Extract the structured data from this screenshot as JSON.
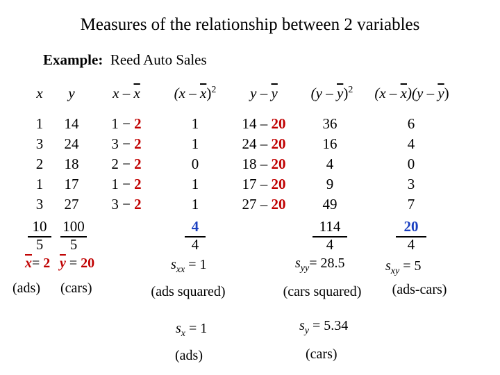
{
  "title": "Measures of the relationship between 2 variables",
  "example_label": "Example:",
  "example_name": "Reed Auto Sales",
  "headers": {
    "x": "x",
    "y": "y",
    "dx_a": "x",
    "dx_minus": " – ",
    "dx_b": "x",
    "dx2_open": "(x – ",
    "dx2_bar": "x",
    "dx2_close": ")",
    "dx2_exp": "2",
    "dy_a": "y",
    "dy_minus": " – ",
    "dy_b": "y",
    "dy2_open": "(y – ",
    "dy2_bar": "y",
    "dy2_close": ")",
    "dy2_exp": "2",
    "dxy_open1": "(x – ",
    "dxy_bar1": "x",
    "dxy_mid": ")(y – ",
    "dxy_bar2": "y",
    "dxy_close": ")"
  },
  "x": [
    "1",
    "3",
    "2",
    "1",
    "3"
  ],
  "y": [
    "14",
    "24",
    "18",
    "17",
    "27"
  ],
  "x_minus": [
    "1 − ",
    "3 − ",
    "2 − ",
    "1 − ",
    "3 − "
  ],
  "x_mean_sub": [
    "2",
    "2",
    "2",
    "2",
    "2"
  ],
  "dx2": [
    "1",
    "1",
    "0",
    "1",
    "1"
  ],
  "y_minus": [
    "14 – ",
    "24 – ",
    "18 – ",
    "17 – ",
    "27 – "
  ],
  "y_mean_sub": [
    "20",
    "20",
    "20",
    "20",
    "20"
  ],
  "dy2": [
    "36",
    "16",
    "4",
    "9",
    "49"
  ],
  "dxy": [
    "6",
    "4",
    "0",
    "3",
    "7"
  ],
  "sums": {
    "x": "10",
    "y": "100",
    "dx2": "4",
    "dy2": "114",
    "dxy": "20"
  },
  "divisors": {
    "x": "5",
    "y": "5",
    "dx2": "4",
    "dy2": "4",
    "dxy": "4"
  },
  "means": {
    "x_var": "x",
    "x_eq": "= ",
    "x_val": "2",
    "y_var": "y",
    "y_eq": " = ",
    "y_val": "20"
  },
  "stats": {
    "sxx_s": "s",
    "sxx_sub": "xx",
    "sxx_val": " = 1",
    "syy_s": "s",
    "syy_sub": "yy",
    "syy_val": "= 28.5",
    "sxy_s": "s",
    "sxy_sub": "xy",
    "sxy_val": " = 5",
    "sx_s": "s",
    "sx_sub": "x",
    "sx_val": " = 1",
    "sy_s": "s",
    "sy_sub": "y",
    "sy_val": " = 5.34"
  },
  "labels": {
    "ads": "(ads)",
    "cars": "(cars)",
    "ads_squared": "(ads squared)",
    "cars_squared": "(cars squared)",
    "ads_cars": "(ads-cars)",
    "ads2": "(ads)",
    "cars2": "(cars)"
  }
}
